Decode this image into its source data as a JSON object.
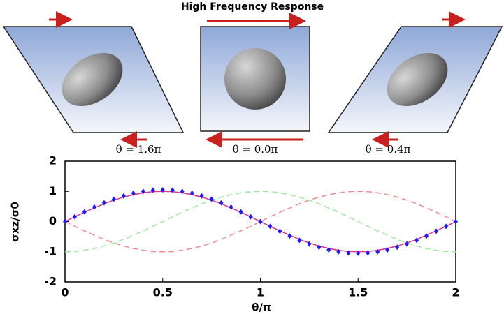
{
  "chart_data": {
    "type": "line",
    "title": "High Frequency Response",
    "annotations": [
      "θ = 1.6π",
      "θ = 0.0π",
      "θ = 0.4π"
    ],
    "xlabel": "θ/π",
    "ylabel": "σxz/σ0",
    "x": [
      0,
      0.05,
      0.1,
      0.15,
      0.2,
      0.25,
      0.3,
      0.35,
      0.4,
      0.45,
      0.5,
      0.55,
      0.6,
      0.65,
      0.7,
      0.75,
      0.8,
      0.85,
      0.9,
      0.95,
      1,
      1.05,
      1.1,
      1.15,
      1.2,
      1.25,
      1.3,
      1.35,
      1.4,
      1.45,
      1.5,
      1.55,
      1.6,
      1.65,
      1.7,
      1.75,
      1.8,
      1.85,
      1.9,
      1.95,
      2
    ],
    "xlim": [
      0,
      2
    ],
    "xticks": [
      0,
      0.5,
      1,
      1.5,
      2
    ],
    "ylim": [
      -2,
      2
    ],
    "yticks": [
      -2,
      -1,
      0,
      1,
      2
    ],
    "series": [
      {
        "color": "#f08a8a",
        "line": "dashed",
        "values": [
          0,
          -0.16,
          -0.31,
          -0.45,
          -0.59,
          -0.71,
          -0.81,
          -0.89,
          -0.95,
          -0.99,
          -1,
          -0.99,
          -0.95,
          -0.89,
          -0.81,
          -0.71,
          -0.59,
          -0.45,
          -0.31,
          -0.16,
          0,
          0.16,
          0.31,
          0.45,
          0.59,
          0.71,
          0.81,
          0.89,
          0.95,
          0.99,
          1,
          0.99,
          0.95,
          0.89,
          0.81,
          0.71,
          0.59,
          0.45,
          0.31,
          0.16,
          0
        ]
      },
      {
        "color": "#9be89b",
        "line": "dashed",
        "values": [
          -1,
          -0.99,
          -0.95,
          -0.89,
          -0.81,
          -0.71,
          -0.59,
          -0.45,
          -0.31,
          -0.16,
          0,
          0.16,
          0.31,
          0.45,
          0.59,
          0.71,
          0.81,
          0.89,
          0.95,
          0.99,
          1,
          0.99,
          0.95,
          0.89,
          0.81,
          0.71,
          0.59,
          0.45,
          0.31,
          0.16,
          0,
          -0.16,
          -0.31,
          -0.45,
          -0.59,
          -0.71,
          -0.81,
          -0.89,
          -0.95,
          -0.99,
          -1
        ]
      },
      {
        "color": "#e0308a",
        "line": "solid",
        "values": [
          0,
          0.16,
          0.31,
          0.45,
          0.59,
          0.71,
          0.81,
          0.89,
          0.95,
          0.99,
          1,
          0.99,
          0.95,
          0.89,
          0.81,
          0.71,
          0.59,
          0.45,
          0.31,
          0.16,
          0,
          -0.16,
          -0.31,
          -0.45,
          -0.59,
          -0.71,
          -0.81,
          -0.89,
          -0.95,
          -0.99,
          -1,
          -0.99,
          -0.95,
          -0.89,
          -0.81,
          -0.71,
          -0.59,
          -0.45,
          -0.31,
          -0.16,
          0
        ]
      },
      {
        "color": "#1a1aff",
        "line": "markers",
        "values": [
          0,
          0.16,
          0.32,
          0.48,
          0.62,
          0.74,
          0.85,
          0.94,
          1,
          1.04,
          1.05,
          1.04,
          1,
          0.94,
          0.85,
          0.74,
          0.62,
          0.48,
          0.32,
          0.16,
          0,
          -0.16,
          -0.32,
          -0.48,
          -0.62,
          -0.74,
          -0.85,
          -0.94,
          -1,
          -1.04,
          -1.05,
          -1.04,
          -1,
          -0.94,
          -0.85,
          -0.74,
          -0.62,
          -0.48,
          -0.32,
          -0.16,
          0
        ]
      }
    ]
  }
}
